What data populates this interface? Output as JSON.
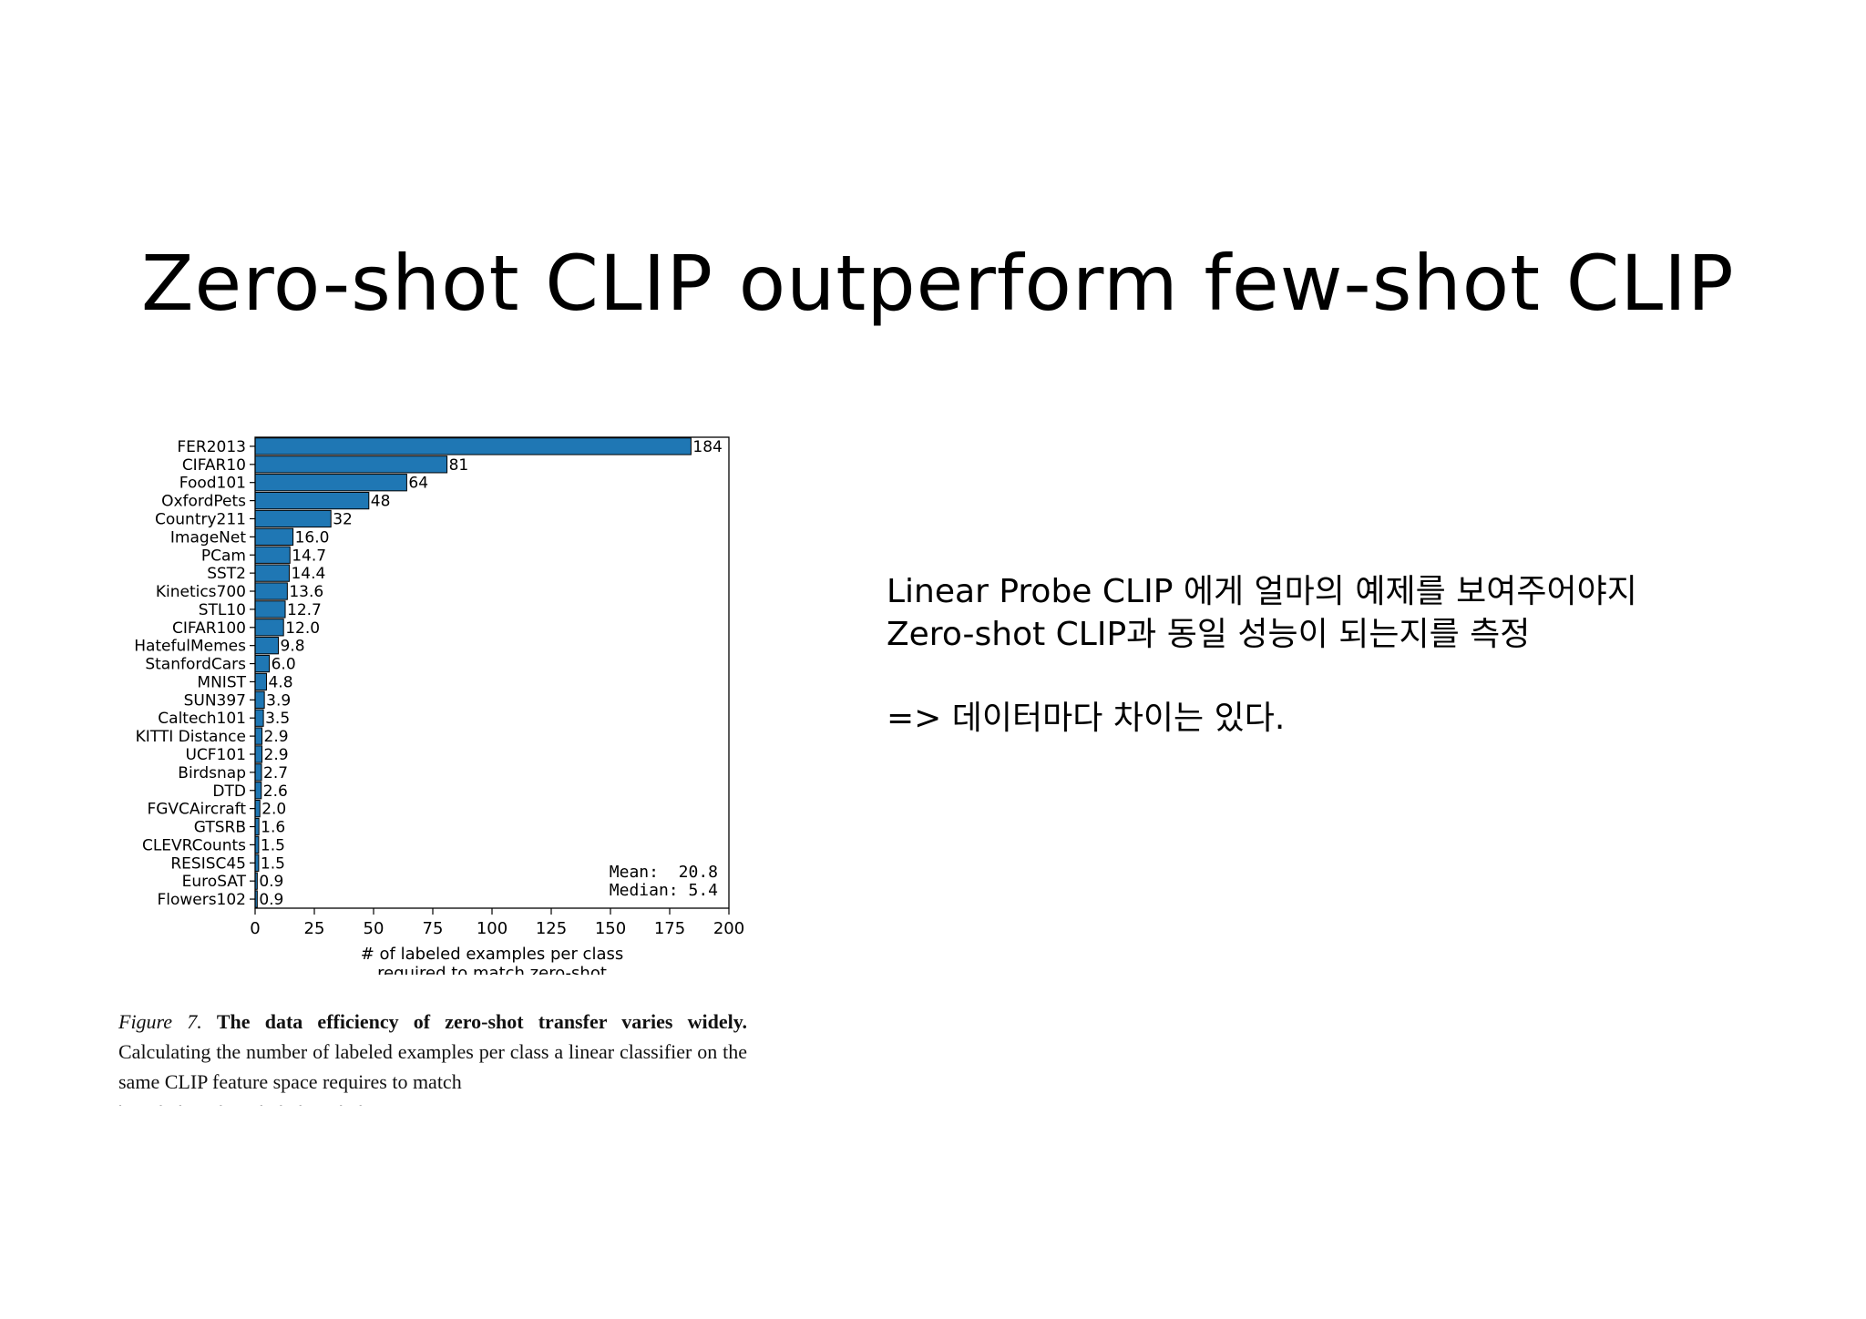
{
  "slide": {
    "title": "Zero-shot CLIP outperform few-shot CLIP",
    "body_lines": [
      "Linear Probe CLIP 에게 얼마의 예제를 보여주어야지",
      "Zero-shot CLIP과 동일 성능이 되는지를 측정",
      "=> 데이터마다 차이는 있다."
    ]
  },
  "caption": {
    "label": "Figure 7.",
    "bold_text": "The data efficiency of zero-shot transfer varies widely.",
    "text": "Calculating the number of labeled examples per class a linear classifier on the same CLIP feature space requires to match"
  },
  "colors": {
    "bar": "#1f77b4",
    "bar_edge": "#000000"
  },
  "chart_data": {
    "type": "bar",
    "orientation": "horizontal",
    "categories": [
      "FER2013",
      "CIFAR10",
      "Food101",
      "OxfordPets",
      "Country211",
      "ImageNet",
      "PCam",
      "SST2",
      "Kinetics700",
      "STL10",
      "CIFAR100",
      "HatefulMemes",
      "StanfordCars",
      "MNIST",
      "SUN397",
      "Caltech101",
      "KITTI Distance",
      "UCF101",
      "Birdsnap",
      "DTD",
      "FGVCAircraft",
      "GTSRB",
      "CLEVRCounts",
      "RESISC45",
      "EuroSAT",
      "Flowers102"
    ],
    "values": [
      184,
      81,
      64,
      48,
      32,
      16.0,
      14.7,
      14.4,
      13.6,
      12.7,
      12.0,
      9.8,
      6.0,
      4.8,
      3.9,
      3.5,
      2.9,
      2.9,
      2.7,
      2.6,
      2.0,
      1.6,
      1.5,
      1.5,
      0.9,
      0.9
    ],
    "value_labels": [
      "184",
      "81",
      "64",
      "48",
      "32",
      "16.0",
      "14.7",
      "14.4",
      "13.6",
      "12.7",
      "12.0",
      "9.8",
      "6.0",
      "4.8",
      "3.9",
      "3.5",
      "2.9",
      "2.9",
      "2.7",
      "2.6",
      "2.0",
      "1.6",
      "1.5",
      "1.5",
      "0.9",
      "0.9"
    ],
    "xlabel_lines": [
      "# of labeled examples per class",
      "required to match zero-shot"
    ],
    "xlim": [
      0,
      200
    ],
    "xticks": [
      0,
      25,
      50,
      75,
      100,
      125,
      150,
      175,
      200
    ],
    "stats_lines": [
      "Mean:  20.8",
      "Median: 5.4"
    ],
    "grid": false,
    "legend": "none"
  }
}
